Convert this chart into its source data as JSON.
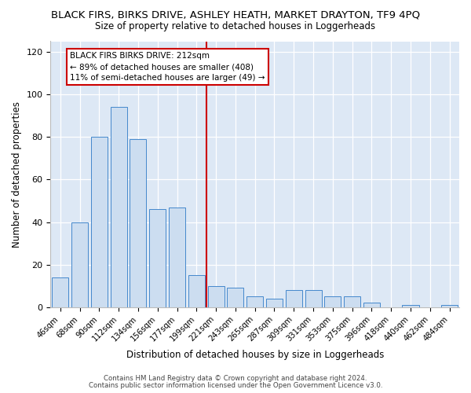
{
  "title": "BLACK FIRS, BIRKS DRIVE, ASHLEY HEATH, MARKET DRAYTON, TF9 4PQ",
  "subtitle": "Size of property relative to detached houses in Loggerheads",
  "xlabel": "Distribution of detached houses by size in Loggerheads",
  "ylabel": "Number of detached properties",
  "categories": [
    "46sqm",
    "68sqm",
    "90sqm",
    "112sqm",
    "134sqm",
    "156sqm",
    "177sqm",
    "199sqm",
    "221sqm",
    "243sqm",
    "265sqm",
    "287sqm",
    "309sqm",
    "331sqm",
    "353sqm",
    "375sqm",
    "396sqm",
    "418sqm",
    "440sqm",
    "462sqm",
    "484sqm"
  ],
  "bar_heights": [
    14,
    40,
    80,
    94,
    79,
    46,
    47,
    15,
    10,
    9,
    5,
    4,
    8,
    8,
    5,
    5,
    2,
    0,
    1,
    0,
    1
  ],
  "bar_color": "#ccddf0",
  "bar_edge_color": "#4488cc",
  "vline_color": "#cc0000",
  "vline_pos": 7.5,
  "annotation_title": "BLACK FIRS BIRKS DRIVE: 212sqm",
  "annotation_line1": "← 89% of detached houses are smaller (408)",
  "annotation_line2": "11% of semi-detached houses are larger (49) →",
  "ylim": [
    0,
    125
  ],
  "yticks": [
    0,
    20,
    40,
    60,
    80,
    100,
    120
  ],
  "box_edge_color": "#cc0000",
  "footer1": "Contains HM Land Registry data © Crown copyright and database right 2024.",
  "footer2": "Contains public sector information licensed under the Open Government Licence v3.0.",
  "fig_bg_color": "#ffffff",
  "plot_bg_color": "#dde8f5"
}
